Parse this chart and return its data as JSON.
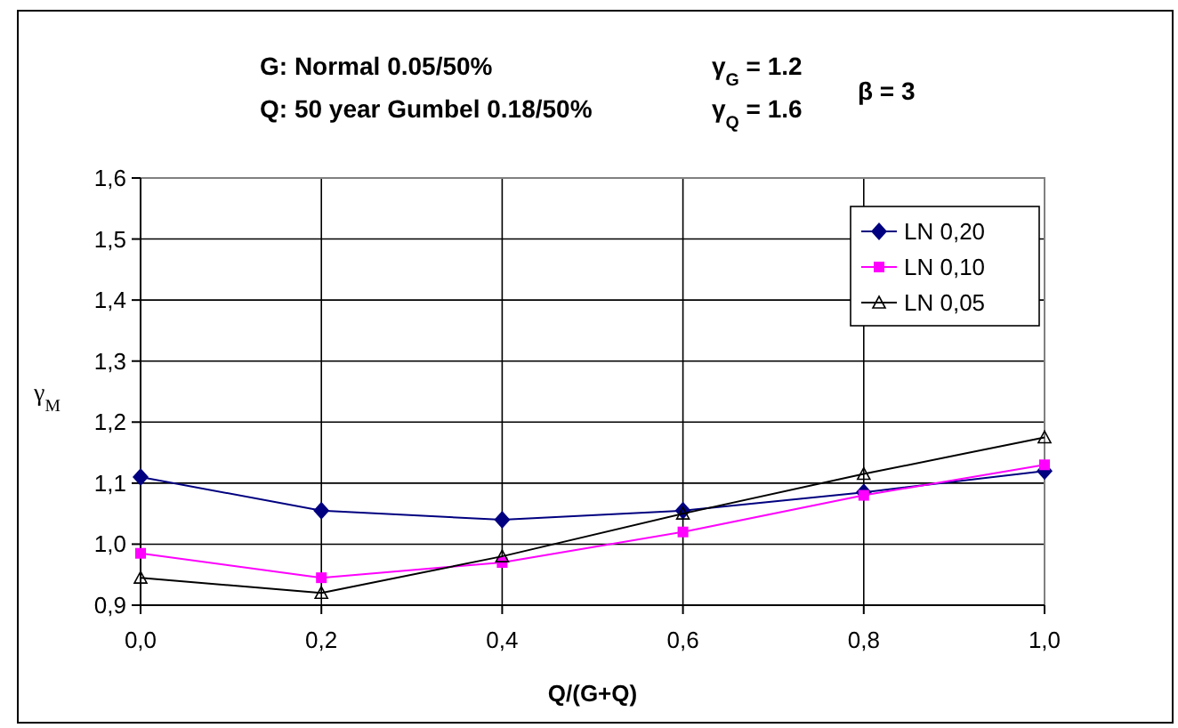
{
  "chart_data": {
    "type": "line",
    "title": "G: Normal 0.05/50%",
    "subtitle": "Q: 50 year Gumbel 0.18/50%",
    "annotations": [
      "γ$_{G}$ = 1.2",
      "γ$_{Q}$ = 1.6",
      "β = 3"
    ],
    "xlabel": "Q/(G+Q)",
    "ylabel": "γ$_{M}$",
    "x": [
      0,
      0.2,
      0.4,
      0.6,
      0.8,
      1.0
    ],
    "xlim": [
      0,
      1
    ],
    "xticks": [
      {
        "value": 0,
        "label": "0,0"
      },
      {
        "value": 0.2,
        "label": "0,2"
      },
      {
        "value": 0.4,
        "label": "0,4"
      },
      {
        "value": 0.6,
        "label": "0,6"
      },
      {
        "value": 0.8,
        "label": "0,8"
      },
      {
        "value": 1,
        "label": "1,0"
      }
    ],
    "ylim": [
      0.9,
      1.6
    ],
    "yticks": [
      {
        "value": 0.9,
        "label": "0,9"
      },
      {
        "value": 1.0,
        "label": "1,0"
      },
      {
        "value": 1.1,
        "label": "1,1"
      },
      {
        "value": 1.2,
        "label": "1,2"
      },
      {
        "value": 1.3,
        "label": "1,3"
      },
      {
        "value": 1.4,
        "label": "1,4"
      },
      {
        "value": 1.5,
        "label": "1,5"
      },
      {
        "value": 1.6,
        "label": "1,6"
      }
    ],
    "grid": true,
    "legend": "top right",
    "series": [
      {
        "name": "LN 0,20",
        "color": "#000080",
        "marker": "diamond",
        "values": [
          1.11,
          1.055,
          1.04,
          1.055,
          1.085,
          1.12
        ]
      },
      {
        "name": "LN 0,10",
        "color": "#ff00ff",
        "marker": "square",
        "values": [
          0.985,
          0.945,
          0.97,
          1.02,
          1.08,
          1.13
        ]
      },
      {
        "name": "LN 0,05",
        "color": "#000000",
        "marker": "triangle",
        "values": [
          0.945,
          0.92,
          0.98,
          1.05,
          1.115,
          1.175
        ]
      }
    ]
  }
}
